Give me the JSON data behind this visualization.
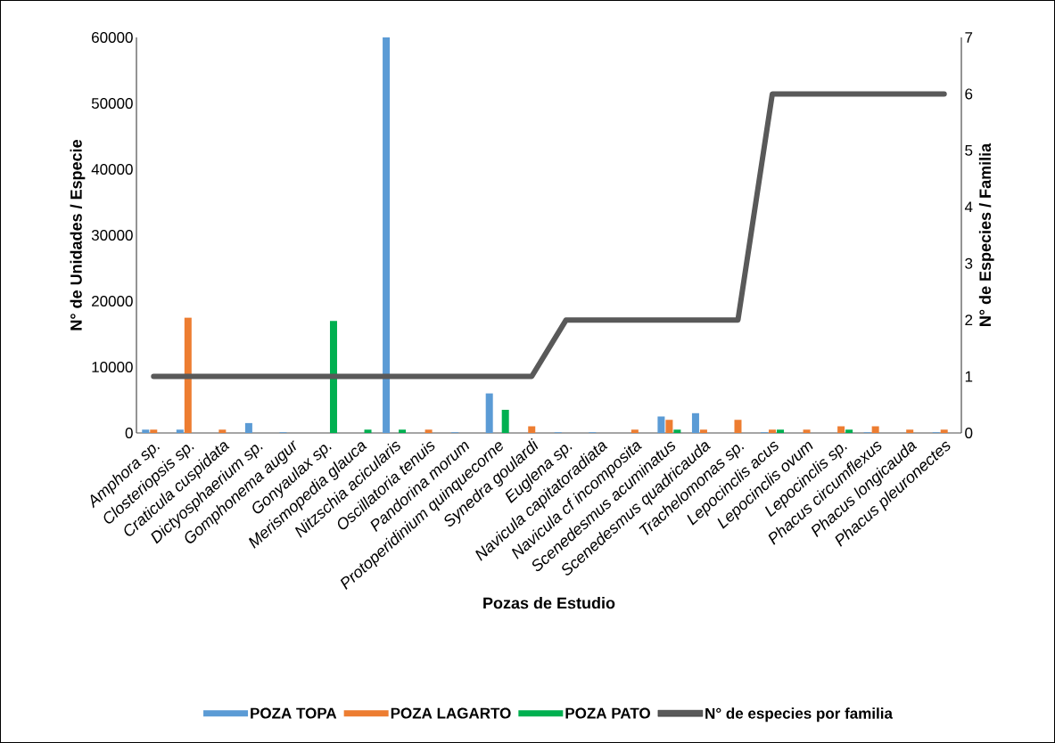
{
  "chart_data": {
    "type": "bar",
    "xlabel": "Pozas de Estudio",
    "ylabel": "N° de  Unidades / Especie",
    "y2label": "N° de Especies / Familia",
    "categories": [
      "Amphora sp.",
      "Closteriopsis sp.",
      "Craticula cuspidata",
      "Dictyosphaerium sp.",
      "Gomphonema augur",
      "Gonyaulax sp.",
      "Merismopedia glauca",
      "Nitzschia acicularis",
      "Oscillatoria tenuis",
      "Pandorina morum",
      "Protoperidinium quinquecorne",
      "Synedra goulardi",
      "Euglena sp.",
      "Navicula capitatoradiata",
      "Navicula cf incomposita",
      "Scenedesmus acuminatus",
      "Scenedesmus quadricauda",
      "Trachelomonas sp.",
      "Lepocinclis acus",
      "Lepocinclis ovum",
      "Lepocinclis sp.",
      "Phacus circumflexus",
      "Phacus longicauda",
      "Phacus pleuronectes"
    ],
    "series": [
      {
        "name": "POZA TOPA",
        "color": "#5b9bd5",
        "values": [
          500,
          500,
          0,
          1500,
          100,
          0,
          0,
          60000,
          0,
          100,
          6000,
          0,
          100,
          100,
          0,
          2500,
          3000,
          0,
          100,
          0,
          0,
          100,
          0,
          100
        ]
      },
      {
        "name": "POZA LAGARTO",
        "color": "#ed7d31",
        "values": [
          500,
          17500,
          500,
          0,
          0,
          0,
          0,
          0,
          500,
          0,
          0,
          1000,
          0,
          0,
          500,
          2000,
          500,
          2000,
          500,
          500,
          1000,
          1000,
          500,
          500
        ]
      },
      {
        "name": "POZA PATO",
        "color": "#00b050",
        "values": [
          0,
          0,
          0,
          0,
          0,
          17000,
          500,
          500,
          0,
          0,
          3500,
          0,
          0,
          0,
          0,
          500,
          0,
          0,
          500,
          0,
          500,
          0,
          0,
          0
        ]
      },
      {
        "name": "N° de especies por familia",
        "type": "line",
        "axis": "y2",
        "color": "#595959",
        "values": [
          1,
          1,
          1,
          1,
          1,
          1,
          1,
          1,
          1,
          1,
          1,
          1,
          2,
          2,
          2,
          2,
          2,
          2,
          6,
          6,
          6,
          6,
          6,
          6
        ]
      }
    ],
    "ylim": [
      0,
      60000
    ],
    "yticks": [
      0,
      10000,
      20000,
      30000,
      40000,
      50000,
      60000
    ],
    "y2lim": [
      0,
      7
    ],
    "y2ticks": [
      0,
      1,
      2,
      3,
      4,
      5,
      6,
      7
    ],
    "legend": "bottom"
  }
}
